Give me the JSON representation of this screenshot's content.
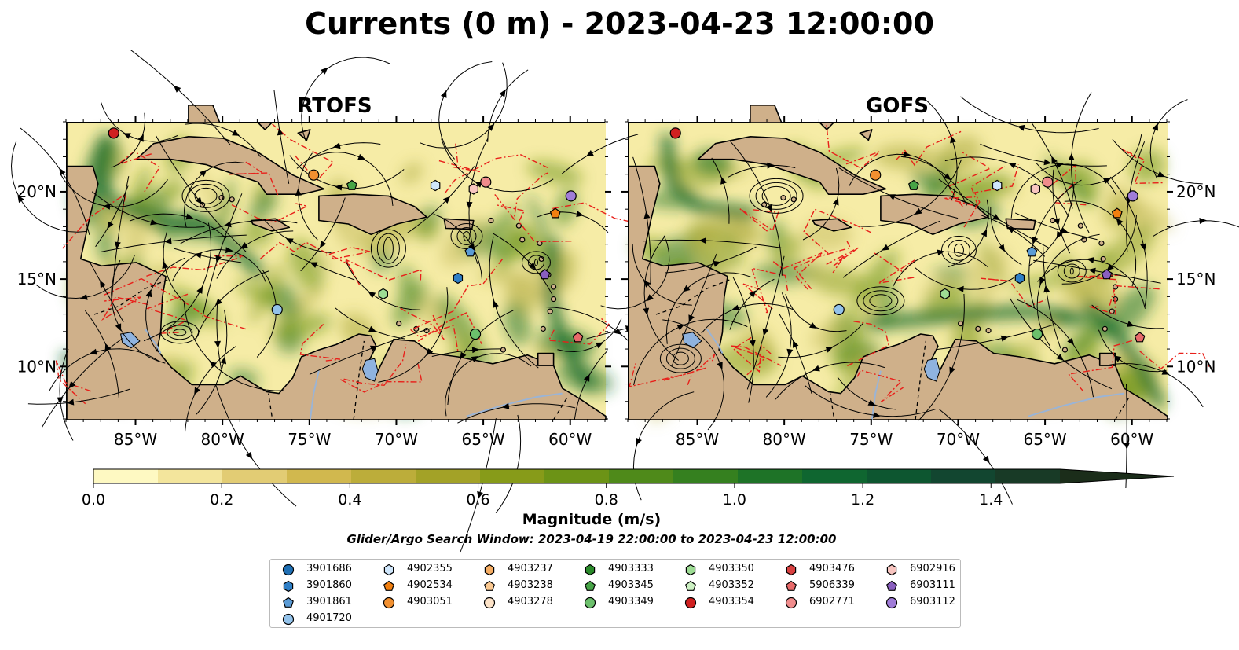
{
  "title": "Currents (0 m) - 2023-04-23 12:00:00",
  "panels": [
    {
      "name": "RTOFS"
    },
    {
      "name": "GOFS"
    }
  ],
  "axes": {
    "lat_labels": [
      "10°N",
      "15°N",
      "20°N"
    ],
    "lon_labels": [
      "85°W",
      "80°W",
      "75°W",
      "70°W",
      "65°W",
      "60°W"
    ]
  },
  "colorbar": {
    "label": "Magnitude (m/s)",
    "tick_labels": [
      "0.0",
      "0.2",
      "0.4",
      "0.6",
      "0.8",
      "1.0",
      "1.2",
      "1.4"
    ],
    "colors": [
      "#fef9c2",
      "#f3e59c",
      "#e2cc74",
      "#d1b84e",
      "#bcad3a",
      "#a3a227",
      "#879b19",
      "#6c9316",
      "#4f8a1a",
      "#35801f",
      "#1e7327",
      "#0f6630",
      "#0d5630",
      "#124630",
      "#183a26",
      "#1b2d1a"
    ]
  },
  "search_window": "Glider/Argo Search Window: 2023-04-19 22:00:00 to 2023-04-23 12:00:00",
  "legend": [
    {
      "id": "3901686",
      "marker": "circle",
      "color": "#1f6fb4"
    },
    {
      "id": "3901860",
      "marker": "hexagon",
      "color": "#2f7fc6"
    },
    {
      "id": "3901861",
      "marker": "pentagon",
      "color": "#5b9bd5"
    },
    {
      "id": "4901720",
      "marker": "circle",
      "color": "#93c2ea"
    },
    {
      "id": "4902355",
      "marker": "hexagon",
      "color": "#cfe6fb"
    },
    {
      "id": "4902534",
      "marker": "pentagon",
      "color": "#f17f10"
    },
    {
      "id": "4903051",
      "marker": "circle",
      "color": "#f29030"
    },
    {
      "id": "4903237",
      "marker": "hexagon",
      "color": "#f6ad63"
    },
    {
      "id": "4903238",
      "marker": "pentagon",
      "color": "#fbc991"
    },
    {
      "id": "4903278",
      "marker": "circle",
      "color": "#fde3c8"
    },
    {
      "id": "4903333",
      "marker": "hexagon",
      "color": "#2a8a2a"
    },
    {
      "id": "4903345",
      "marker": "pentagon",
      "color": "#47a447"
    },
    {
      "id": "4903349",
      "marker": "circle",
      "color": "#6cc06c"
    },
    {
      "id": "4903350",
      "marker": "hexagon",
      "color": "#9ddc94"
    },
    {
      "id": "4903352",
      "marker": "pentagon",
      "color": "#ccf0c2"
    },
    {
      "id": "4903354",
      "marker": "circle",
      "color": "#d02020"
    },
    {
      "id": "4903476",
      "marker": "hexagon",
      "color": "#d94040"
    },
    {
      "id": "5906339",
      "marker": "pentagon",
      "color": "#e86a6a"
    },
    {
      "id": "6902771",
      "marker": "circle",
      "color": "#f08c8c"
    },
    {
      "id": "6902916",
      "marker": "hexagon",
      "color": "#f8c5c0"
    },
    {
      "id": "6903111",
      "marker": "pentagon",
      "color": "#8a5fbf"
    },
    {
      "id": "6903112",
      "marker": "circle",
      "color": "#a07cd8"
    }
  ],
  "floats_on_map": [
    {
      "id": "4903354",
      "lon": -86.3,
      "lat": 23.4
    },
    {
      "id": "4903051",
      "lon": -74.8,
      "lat": 21.0
    },
    {
      "id": "4903345",
      "lon": -72.6,
      "lat": 20.4
    },
    {
      "id": "4902355",
      "lon": -67.8,
      "lat": 20.4
    },
    {
      "id": "6902916",
      "lon": -65.6,
      "lat": 20.2
    },
    {
      "id": "6902771",
      "lon": -64.9,
      "lat": 20.6
    },
    {
      "id": "6903112",
      "lon": -60.0,
      "lat": 19.8
    },
    {
      "id": "4902534",
      "lon": -60.9,
      "lat": 18.8
    },
    {
      "id": "3901861",
      "lon": -65.8,
      "lat": 16.6
    },
    {
      "id": "3901860",
      "lon": -66.5,
      "lat": 15.1
    },
    {
      "id": "6903111",
      "lon": -61.5,
      "lat": 15.3
    },
    {
      "id": "4903350",
      "lon": -70.8,
      "lat": 14.2
    },
    {
      "id": "4901720",
      "lon": -76.9,
      "lat": 13.3
    },
    {
      "id": "4903349",
      "lon": -65.5,
      "lat": 11.9
    },
    {
      "id": "5906339",
      "lon": -59.6,
      "lat": 11.7
    }
  ]
}
